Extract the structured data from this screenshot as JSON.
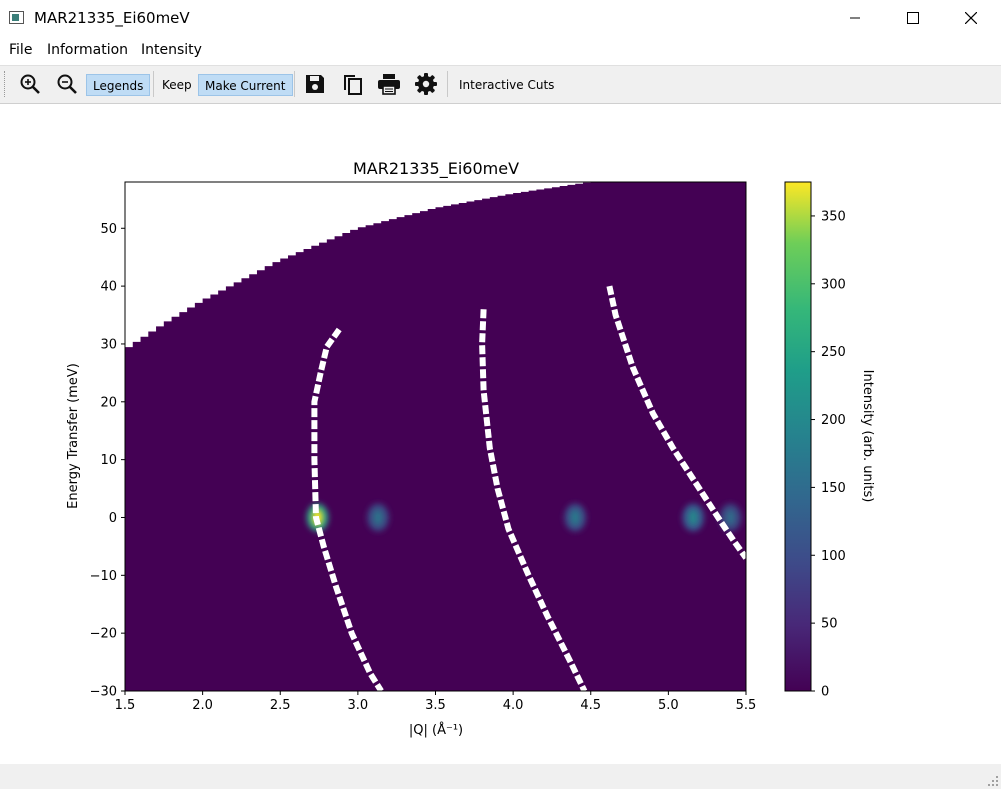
{
  "window": {
    "title": "MAR21335_Ei60meV",
    "icon": "app-window-icon",
    "controls": [
      "minimize-icon",
      "maximize-icon",
      "close-icon"
    ]
  },
  "menu": {
    "file": "File",
    "information": "Information",
    "intensity": "Intensity"
  },
  "toolbar": {
    "zoom_in_icon": "zoom-in-icon",
    "zoom_out_icon": "zoom-out-icon",
    "legends": "Legends",
    "keep": "Keep",
    "make_current": "Make Current",
    "save_icon": "save-icon",
    "copy_icon": "copy-icon",
    "print_icon": "print-icon",
    "settings_icon": "gear-icon",
    "interactive_cuts": "Interactive Cuts"
  },
  "colors": {
    "background_cell": "#440154",
    "accent_toggle": "#bfdcf5"
  },
  "chart_data": {
    "type": "heatmap",
    "title": "MAR21335_Ei60meV",
    "xlabel": "|Q| (Å⁻¹)",
    "ylabel": "Energy Transfer (meV)",
    "xlim": [
      1.5,
      5.5
    ],
    "ylim": [
      -30,
      58
    ],
    "xticks": [
      "1.5",
      "2.0",
      "2.5",
      "3.0",
      "3.5",
      "4.0",
      "4.5",
      "5.0",
      "5.5"
    ],
    "yticks": [
      "−30",
      "−20",
      "−10",
      "0",
      "10",
      "20",
      "30",
      "40",
      "50"
    ],
    "colormap": "viridis",
    "colorbar": {
      "label": "Intensity (arb. units)",
      "range": [
        0,
        375
      ],
      "ticks": [
        "0",
        "50",
        "100",
        "150",
        "200",
        "250",
        "300",
        "350"
      ]
    },
    "kinematic_limit": [
      [
        1.5,
        29
      ],
      [
        1.75,
        33.5
      ],
      [
        2.0,
        37.5
      ],
      [
        2.5,
        44.5
      ],
      [
        3.0,
        50
      ],
      [
        3.5,
        53.5
      ],
      [
        4.0,
        56
      ],
      [
        4.5,
        58
      ],
      [
        5.5,
        58
      ]
    ],
    "gaps": [
      [
        [
          2.88,
          32.5
        ],
        [
          2.8,
          29.5
        ],
        [
          2.76,
          25
        ],
        [
          2.72,
          20
        ],
        [
          2.72,
          10
        ],
        [
          2.73,
          0
        ],
        [
          2.78,
          -5
        ],
        [
          2.86,
          -12
        ],
        [
          2.96,
          -20
        ],
        [
          3.08,
          -27
        ],
        [
          3.15,
          -30
        ]
      ],
      [
        [
          3.81,
          36
        ],
        [
          3.8,
          30
        ],
        [
          3.81,
          22
        ],
        [
          3.85,
          12
        ],
        [
          3.9,
          5
        ],
        [
          3.97,
          -2
        ],
        [
          4.1,
          -10
        ],
        [
          4.22,
          -17
        ],
        [
          4.37,
          -25
        ],
        [
          4.46,
          -30
        ]
      ],
      [
        [
          4.62,
          40
        ],
        [
          4.66,
          35
        ],
        [
          4.77,
          26
        ],
        [
          4.9,
          18
        ],
        [
          5.03,
          12
        ],
        [
          5.2,
          5
        ],
        [
          5.32,
          0
        ],
        [
          5.42,
          -4
        ],
        [
          5.5,
          -7
        ]
      ]
    ],
    "peaks": [
      {
        "q": 2.74,
        "e": 0,
        "intensity": 375
      },
      {
        "q": 3.13,
        "e": 0,
        "intensity": 140
      },
      {
        "q": 4.4,
        "e": 0,
        "intensity": 150
      },
      {
        "q": 5.16,
        "e": 0,
        "intensity": 170
      },
      {
        "q": 5.4,
        "e": 0,
        "intensity": 130
      }
    ]
  }
}
